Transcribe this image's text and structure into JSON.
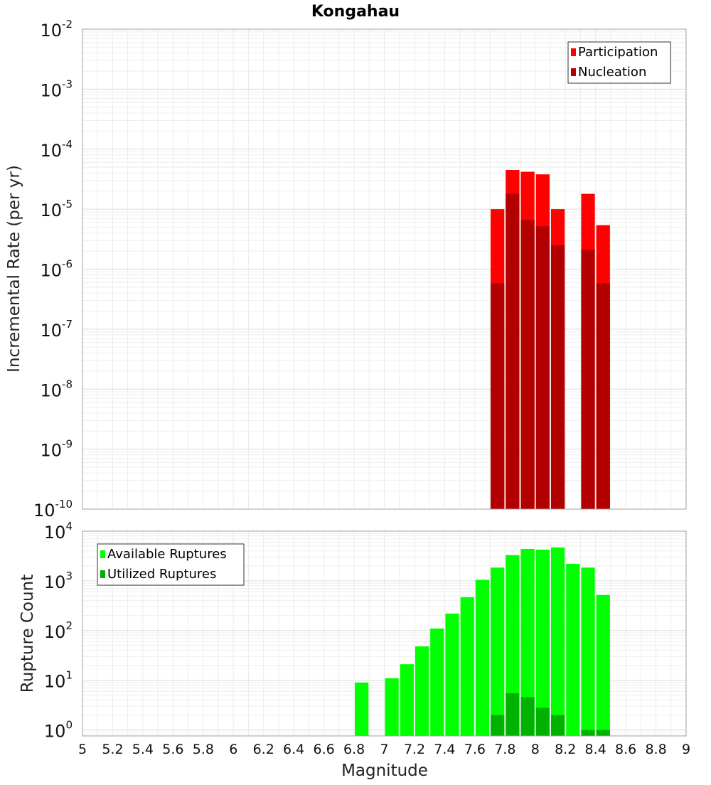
{
  "chart_data": [
    {
      "type": "bar",
      "title": "Kongahau",
      "xlabel": "",
      "ylabel": "Incremental Rate (per yr)",
      "yscale": "log",
      "xlim": [
        5,
        9
      ],
      "ylim_exponents": [
        -10,
        -2
      ],
      "ytick_base": "10",
      "ytick_exponents": [
        "-10",
        "-9",
        "-8",
        "-7",
        "-6",
        "-5",
        "-4",
        "-3",
        "-2"
      ],
      "grid": true,
      "legend_position": "top-right",
      "bar_width": 0.1,
      "series": [
        {
          "name": "Participation",
          "color": "#ff0000",
          "x": [
            7.75,
            7.85,
            7.95,
            8.05,
            8.15,
            8.35,
            8.45
          ],
          "values": [
            1e-05,
            4.5e-05,
            4.2e-05,
            3.8e-05,
            1e-05,
            1.8e-05,
            5.4e-06
          ]
        },
        {
          "name": "Nucleation",
          "color": "#b20000",
          "x": [
            7.75,
            7.85,
            7.95,
            8.05,
            8.15,
            8.35,
            8.45
          ],
          "values": [
            5.8e-07,
            1.8e-05,
            6.6e-06,
            5.2e-06,
            2.5e-06,
            2.1e-06,
            5.8e-07
          ]
        }
      ]
    },
    {
      "type": "bar",
      "title": "",
      "xlabel": "Magnitude",
      "ylabel": "Rupture Count",
      "yscale": "log",
      "xlim": [
        5,
        9
      ],
      "ylim_exponents": [
        -0.12,
        4
      ],
      "ytick_base": "10",
      "ytick_exponents": [
        "0",
        "1",
        "2",
        "3",
        "4"
      ],
      "xtick_labels": [
        "5",
        "5.2",
        "5.4",
        "5.6",
        "5.8",
        "6",
        "6.2",
        "6.4",
        "6.6",
        "6.8",
        "7",
        "7.2",
        "7.4",
        "7.6",
        "7.8",
        "8",
        "8.2",
        "8.4",
        "8.6",
        "8.8",
        "9"
      ],
      "grid": true,
      "legend_position": "top-left",
      "bar_width": 0.1,
      "series": [
        {
          "name": "Available Ruptures",
          "color": "#00ff00",
          "x": [
            6.85,
            7.05,
            7.15,
            7.25,
            7.35,
            7.45,
            7.55,
            7.65,
            7.75,
            7.85,
            7.95,
            8.05,
            8.15,
            8.25,
            8.35,
            8.45
          ],
          "values": [
            9,
            11,
            21,
            48,
            110,
            220,
            470,
            1050,
            1850,
            3300,
            4400,
            4250,
            4700,
            2200,
            1850,
            520
          ]
        },
        {
          "name": "Utilized Ruptures",
          "color": "#00b200",
          "x": [
            7.75,
            7.85,
            7.95,
            8.05,
            8.15,
            8.35,
            8.45
          ],
          "values": [
            2,
            5.5,
            4.6,
            2.8,
            2,
            1,
            1
          ]
        }
      ]
    }
  ]
}
